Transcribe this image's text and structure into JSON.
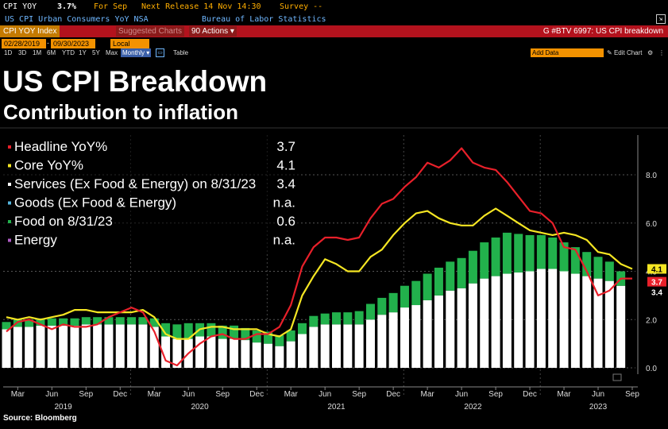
{
  "header": {
    "ticker": "CPI YOY",
    "value": "3.7%",
    "period": "For Sep",
    "next_release": "Next Release 14 Nov 14:30",
    "survey": "Survey --",
    "description": "US CPI Urban Consumers YoY NSA",
    "source_agency": "Bureau of Labor Statistics"
  },
  "toolbar": {
    "index_label": "CPI YOY Index",
    "suggested_charts": "Suggested Charts",
    "actions_label": "90 Actions ▾",
    "chart_id": "G #BTV 6997: US CPI breakdown",
    "start_date": "02/28/2019",
    "end_date": "09/30/2023",
    "currency": "Local CCY ▾",
    "frequency": "Monthly ▾",
    "ranges": [
      "1D",
      "3D",
      "1M",
      "6M",
      "YTD",
      "1Y",
      "5Y",
      "Max"
    ],
    "table_label": "Table",
    "add_data": "Add Data",
    "edit_chart": "Edit Chart"
  },
  "titles": {
    "main": "US CPI Breakdown",
    "subtitle": "Contribution to inflation"
  },
  "legend": [
    {
      "label": "Headline YoY%",
      "value": "3.7",
      "color": "#e8202a"
    },
    {
      "label": "Core YoY%",
      "value": "4.1",
      "color": "#f5e623"
    },
    {
      "label": "Services (Ex Food & Energy) on 8/31/23",
      "value": "3.4",
      "color": "#ffffff"
    },
    {
      "label": "Goods (Ex Food & Energy)",
      "value": "n.a.",
      "color": "#55b7e0"
    },
    {
      "label": "Food on 8/31/23",
      "value": "0.6",
      "color": "#22b14c"
    },
    {
      "label": "Energy",
      "value": "n.a.",
      "color": "#b05cc6"
    }
  ],
  "source": "Source: Bloomberg",
  "chart_data": {
    "type": "bar",
    "y_range": [
      -0.5,
      10
    ],
    "y_ticks": [
      "0.0",
      "2.0",
      "4.0",
      "6.0",
      "8.0"
    ],
    "y_tick_values": [
      0,
      2,
      4,
      6,
      8
    ],
    "month_labels": [
      "Mar",
      "Jun",
      "Sep",
      "Dec",
      "Mar",
      "Jun",
      "Sep",
      "Dec",
      "Mar",
      "Jun",
      "Sep",
      "Dec",
      "Mar",
      "Jun",
      "Sep",
      "Dec",
      "Mar",
      "Jun",
      "Sep"
    ],
    "year_labels": [
      "2019",
      "2020",
      "2021",
      "2022",
      "2023"
    ],
    "x": [
      "2019-02",
      "2019-03",
      "2019-04",
      "2019-05",
      "2019-06",
      "2019-07",
      "2019-08",
      "2019-09",
      "2019-10",
      "2019-11",
      "2019-12",
      "2020-01",
      "2020-02",
      "2020-03",
      "2020-04",
      "2020-05",
      "2020-06",
      "2020-07",
      "2020-08",
      "2020-09",
      "2020-10",
      "2020-11",
      "2020-12",
      "2021-01",
      "2021-02",
      "2021-03",
      "2021-04",
      "2021-05",
      "2021-06",
      "2021-07",
      "2021-08",
      "2021-09",
      "2021-10",
      "2021-11",
      "2021-12",
      "2022-01",
      "2022-02",
      "2022-03",
      "2022-04",
      "2022-05",
      "2022-06",
      "2022-07",
      "2022-08",
      "2022-09",
      "2022-10",
      "2022-11",
      "2022-12",
      "2023-01",
      "2023-02",
      "2023-03",
      "2023-04",
      "2023-05",
      "2023-06",
      "2023-07",
      "2023-08",
      "2023-09"
    ],
    "services": [
      1.6,
      1.7,
      1.7,
      1.75,
      1.75,
      1.75,
      1.75,
      1.8,
      1.8,
      1.8,
      1.8,
      1.8,
      1.8,
      1.7,
      1.3,
      1.2,
      1.2,
      1.3,
      1.3,
      1.2,
      1.2,
      1.15,
      1.05,
      1.0,
      0.9,
      1.1,
      1.4,
      1.7,
      1.8,
      1.8,
      1.8,
      1.8,
      2.0,
      2.2,
      2.3,
      2.5,
      2.6,
      2.8,
      3.0,
      3.2,
      3.3,
      3.5,
      3.7,
      3.8,
      3.9,
      3.95,
      4.0,
      4.1,
      4.1,
      4.0,
      3.9,
      3.8,
      3.7,
      3.6,
      3.4,
      null
    ],
    "food": [
      0.3,
      0.3,
      0.3,
      0.3,
      0.3,
      0.3,
      0.3,
      0.3,
      0.3,
      0.3,
      0.3,
      0.3,
      0.3,
      0.35,
      0.55,
      0.6,
      0.65,
      0.55,
      0.55,
      0.55,
      0.55,
      0.5,
      0.5,
      0.5,
      0.45,
      0.45,
      0.45,
      0.45,
      0.45,
      0.5,
      0.5,
      0.55,
      0.65,
      0.7,
      0.8,
      0.9,
      1.0,
      1.1,
      1.15,
      1.2,
      1.25,
      1.35,
      1.5,
      1.6,
      1.7,
      1.6,
      1.5,
      1.4,
      1.3,
      1.2,
      1.1,
      1.0,
      0.9,
      0.8,
      0.6,
      null
    ],
    "series": [
      {
        "name": "Headline YoY%",
        "values": [
          1.5,
          1.9,
          2.0,
          1.8,
          1.6,
          1.8,
          1.7,
          1.7,
          1.8,
          2.1,
          2.3,
          2.5,
          2.3,
          1.5,
          0.3,
          0.1,
          0.6,
          1.0,
          1.3,
          1.4,
          1.2,
          1.2,
          1.4,
          1.4,
          1.7,
          2.6,
          4.2,
          5.0,
          5.4,
          5.4,
          5.3,
          5.4,
          6.2,
          6.8,
          7.0,
          7.5,
          7.9,
          8.5,
          8.3,
          8.6,
          9.1,
          8.5,
          8.3,
          8.2,
          7.7,
          7.1,
          6.5,
          6.4,
          6.0,
          5.0,
          4.9,
          4.0,
          3.0,
          3.2,
          3.7,
          3.7
        ]
      },
      {
        "name": "Core YoY%",
        "values": [
          2.1,
          2.0,
          2.1,
          2.0,
          2.1,
          2.2,
          2.4,
          2.4,
          2.3,
          2.3,
          2.3,
          2.3,
          2.4,
          2.1,
          1.4,
          1.2,
          1.2,
          1.6,
          1.7,
          1.7,
          1.6,
          1.6,
          1.6,
          1.4,
          1.3,
          1.6,
          3.0,
          3.8,
          4.5,
          4.3,
          4.0,
          4.0,
          4.6,
          4.9,
          5.5,
          6.0,
          6.4,
          6.5,
          6.2,
          6.0,
          5.9,
          5.9,
          6.3,
          6.6,
          6.3,
          6.0,
          5.7,
          5.6,
          5.5,
          5.6,
          5.5,
          5.3,
          4.8,
          4.7,
          4.3,
          4.1
        ]
      }
    ],
    "end_labels": [
      {
        "text": "4.1",
        "color": "#f5e623"
      },
      {
        "text": "3.7",
        "color": "#e8202a"
      },
      {
        "text": "3.4",
        "color": "#ffffff"
      }
    ]
  }
}
